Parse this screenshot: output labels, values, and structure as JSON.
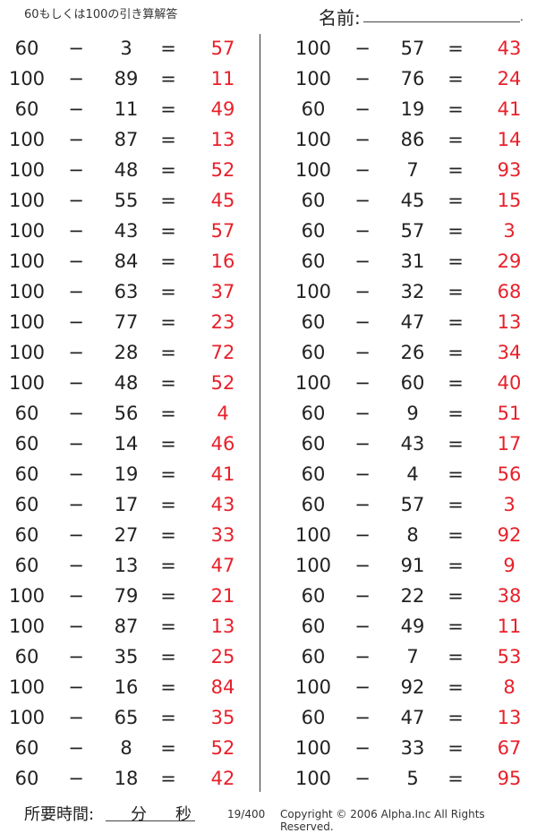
{
  "header": {
    "title": "60もしくは100の引き算解答",
    "name_label": "名前:",
    "name_end": "."
  },
  "colors": {
    "answer": "#e8202a",
    "text": "#222222"
  },
  "operator": "−",
  "equals": "=",
  "left_column": [
    [
      "60",
      "3",
      "57"
    ],
    [
      "100",
      "89",
      "11"
    ],
    [
      "60",
      "11",
      "49"
    ],
    [
      "100",
      "87",
      "13"
    ],
    [
      "100",
      "48",
      "52"
    ],
    [
      "100",
      "55",
      "45"
    ],
    [
      "100",
      "43",
      "57"
    ],
    [
      "100",
      "84",
      "16"
    ],
    [
      "100",
      "63",
      "37"
    ],
    [
      "100",
      "77",
      "23"
    ],
    [
      "100",
      "28",
      "72"
    ],
    [
      "100",
      "48",
      "52"
    ],
    [
      "60",
      "56",
      "4"
    ],
    [
      "60",
      "14",
      "46"
    ],
    [
      "60",
      "19",
      "41"
    ],
    [
      "60",
      "17",
      "43"
    ],
    [
      "60",
      "27",
      "33"
    ],
    [
      "60",
      "13",
      "47"
    ],
    [
      "100",
      "79",
      "21"
    ],
    [
      "100",
      "87",
      "13"
    ],
    [
      "60",
      "35",
      "25"
    ],
    [
      "100",
      "16",
      "84"
    ],
    [
      "100",
      "65",
      "35"
    ],
    [
      "60",
      "8",
      "52"
    ],
    [
      "60",
      "18",
      "42"
    ]
  ],
  "right_column": [
    [
      "100",
      "57",
      "43"
    ],
    [
      "100",
      "76",
      "24"
    ],
    [
      "60",
      "19",
      "41"
    ],
    [
      "100",
      "86",
      "14"
    ],
    [
      "100",
      "7",
      "93"
    ],
    [
      "60",
      "45",
      "15"
    ],
    [
      "60",
      "57",
      "3"
    ],
    [
      "60",
      "31",
      "29"
    ],
    [
      "100",
      "32",
      "68"
    ],
    [
      "60",
      "47",
      "13"
    ],
    [
      "60",
      "26",
      "34"
    ],
    [
      "100",
      "60",
      "40"
    ],
    [
      "60",
      "9",
      "51"
    ],
    [
      "60",
      "43",
      "17"
    ],
    [
      "60",
      "4",
      "56"
    ],
    [
      "60",
      "57",
      "3"
    ],
    [
      "100",
      "8",
      "92"
    ],
    [
      "100",
      "91",
      "9"
    ],
    [
      "60",
      "22",
      "38"
    ],
    [
      "60",
      "49",
      "11"
    ],
    [
      "60",
      "7",
      "53"
    ],
    [
      "100",
      "92",
      "8"
    ],
    [
      "60",
      "47",
      "13"
    ],
    [
      "100",
      "33",
      "67"
    ],
    [
      "100",
      "5",
      "95"
    ]
  ],
  "footer": {
    "time_label": "所要時間:",
    "minutes": "分",
    "seconds": "秒",
    "page": "19/400",
    "copyright": "Copyright © 2006 Alpha.Inc All Rights Reserved."
  }
}
